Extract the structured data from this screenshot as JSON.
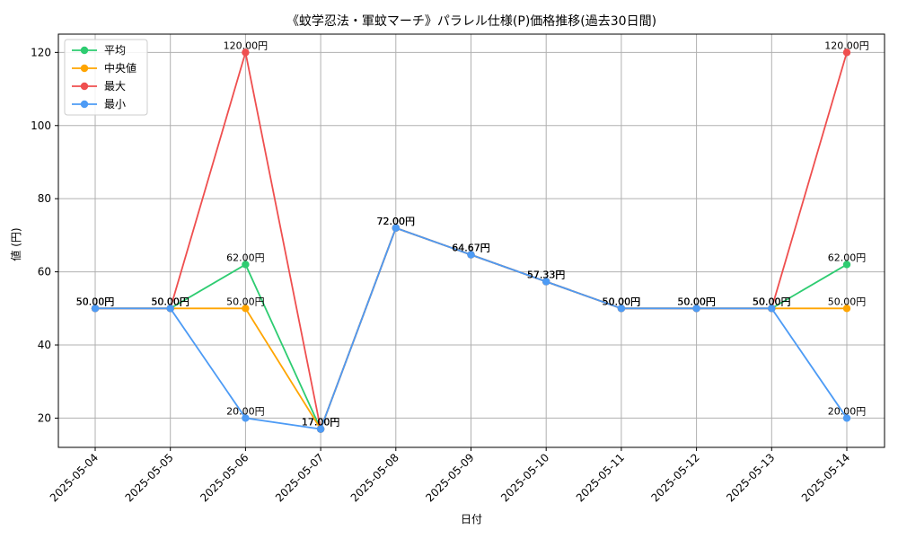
{
  "chart_data": {
    "type": "line",
    "title": "《蚊学忍法・軍蚊マーチ》パラレル仕様(P)価格推移(過去30日間)",
    "xlabel": "日付",
    "ylabel": "値 (円)",
    "categories": [
      "2025-05-04",
      "2025-05-05",
      "2025-05-06",
      "2025-05-07",
      "2025-05-08",
      "2025-05-09",
      "2025-05-10",
      "2025-05-11",
      "2025-05-12",
      "2025-05-13",
      "2025-05-14"
    ],
    "ylim": [
      12,
      125
    ],
    "yticks": [
      20,
      40,
      60,
      80,
      100,
      120
    ],
    "grid": true,
    "legend_position": "top-left",
    "value_suffix": "円",
    "series": [
      {
        "name": "平均",
        "color": "#2ecc71",
        "values": [
          50,
          50,
          62,
          17,
          72,
          64.67,
          57.33,
          50,
          50,
          50,
          62
        ]
      },
      {
        "name": "中央値",
        "color": "#ffa500",
        "values": [
          50,
          50,
          50,
          17,
          72,
          64.67,
          57.33,
          50,
          50,
          50,
          50
        ]
      },
      {
        "name": "最大",
        "color": "#ef4f4f",
        "values": [
          50,
          50,
          120,
          17,
          72,
          64.67,
          57.33,
          50,
          50,
          50,
          120
        ]
      },
      {
        "name": "最小",
        "color": "#4d9bf5",
        "values": [
          50,
          50,
          20,
          17,
          72,
          64.67,
          57.33,
          50,
          50,
          50,
          20
        ]
      }
    ]
  }
}
